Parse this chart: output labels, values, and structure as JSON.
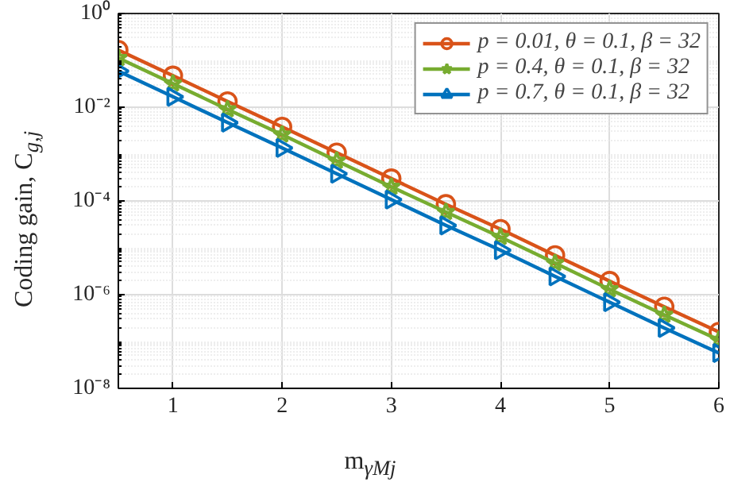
{
  "chart_data": {
    "type": "line",
    "xlabel": "m$_{γMj}$",
    "ylabel": "Coding gain, C$_{g,j}$",
    "x": [
      0.5,
      1,
      1.5,
      2,
      2.5,
      3,
      3.5,
      4,
      4.5,
      5,
      5.5,
      6
    ],
    "series": [
      {
        "name": "p = 0.01, θ = 0.1, β = 32",
        "color": "#d95319",
        "marker": "circle",
        "values": [
          0.166,
          0.047,
          0.0133,
          0.0038,
          0.00107,
          0.0003,
          8.5e-05,
          2.5e-05,
          6.9e-06,
          1.95e-06,
          5.5e-07,
          1.6e-07
        ]
      },
      {
        "name": "p = 0.4, θ = 0.1, β = 32",
        "color": "#77ac30",
        "marker": "star",
        "values": [
          0.112,
          0.032,
          0.009,
          0.0026,
          0.00072,
          0.0002,
          5.8e-05,
          1.7e-05,
          4.7e-06,
          1.3e-06,
          3.7e-07,
          1.08e-07
        ]
      },
      {
        "name": "p = 0.7, θ = 0.1, β = 32",
        "color": "#0072bd",
        "marker": "triangle",
        "values": [
          0.059,
          0.0167,
          0.0047,
          0.00135,
          0.00038,
          0.000107,
          3e-05,
          8.9e-06,
          2.45e-06,
          6.9e-07,
          1.95e-07,
          5.7e-08
        ]
      }
    ],
    "log": "y",
    "xlim": [
      0.5,
      6
    ],
    "ylim": [
      1e-08,
      1
    ],
    "xticks": [
      1,
      2,
      3,
      4,
      5,
      6
    ],
    "yticks": [
      {
        "value": 1e-08,
        "label": "10⁻⁸"
      },
      {
        "value": 1e-06,
        "label": "10⁻⁶"
      },
      {
        "value": 0.0001,
        "label": "10⁻⁴"
      },
      {
        "value": 0.01,
        "label": "10⁻²"
      },
      {
        "value": 1,
        "label": "10⁰"
      }
    ],
    "grid": true,
    "legend": "top right",
    "line_style": "solid"
  }
}
